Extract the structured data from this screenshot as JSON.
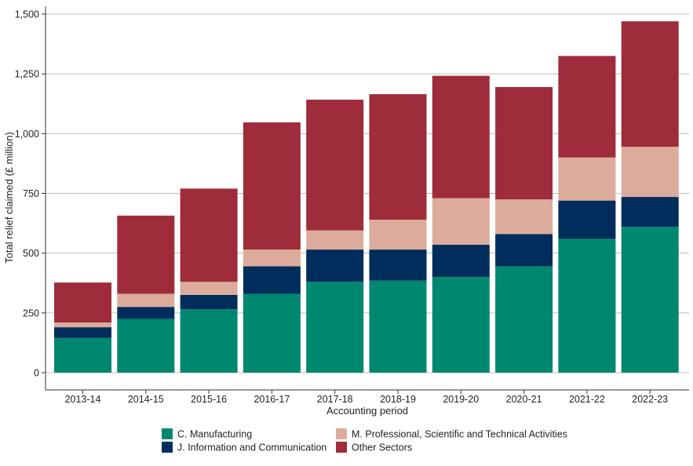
{
  "chart_data": {
    "type": "bar",
    "stacked": true,
    "title": "",
    "xlabel": "Accounting period",
    "ylabel": "Total relief claimed (£ million)",
    "ylim": [
      0,
      1500
    ],
    "yticks": [
      0,
      250,
      500,
      750,
      1000,
      1250,
      1500
    ],
    "ytick_labels": [
      "0",
      "250",
      "500",
      "750",
      "1,000",
      "1,250",
      "1,500"
    ],
    "grid": "horizontal",
    "legend_position": "bottom",
    "categories": [
      "2013-14",
      "2014-15",
      "2015-16",
      "2016-17",
      "2017-18",
      "2018-19",
      "2019-20",
      "2020-21",
      "2021-22",
      "2022-23"
    ],
    "series": [
      {
        "name": "C. Manufacturing",
        "color": "#008770",
        "values": [
          145,
          225,
          265,
          330,
          380,
          385,
          400,
          445,
          560,
          610
        ]
      },
      {
        "name": "J. Information and Communication",
        "color": "#002d5c",
        "values": [
          45,
          50,
          60,
          115,
          135,
          130,
          135,
          135,
          160,
          125
        ]
      },
      {
        "name": "M. Professional, Scientific and Technical Activities",
        "color": "#dcab9b",
        "values": [
          20,
          55,
          55,
          70,
          80,
          125,
          195,
          145,
          180,
          210
        ]
      },
      {
        "name": "Other Sectors",
        "color": "#9f2c3a",
        "values": [
          167,
          327,
          390,
          532,
          547,
          525,
          512,
          470,
          425,
          525
        ]
      }
    ]
  }
}
